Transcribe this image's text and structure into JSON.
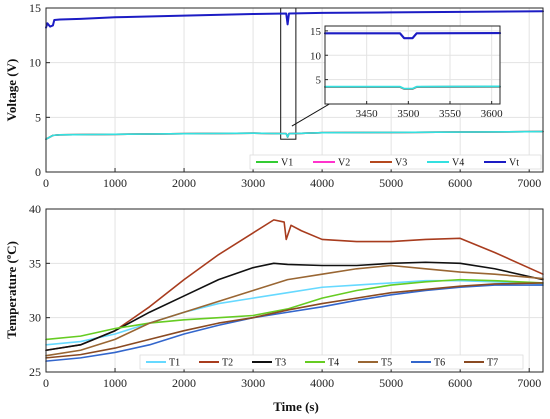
{
  "chart_data": [
    {
      "type": "line",
      "id": "voltage",
      "title": "",
      "xlabel": "",
      "ylabel": "Voltage (V)",
      "xlim": [
        0,
        7200
      ],
      "ylim": [
        0,
        15
      ],
      "xticks": [
        0,
        1000,
        2000,
        3000,
        4000,
        5000,
        6000,
        7000
      ],
      "yticks": [
        0,
        5,
        10,
        15
      ],
      "grid": true,
      "legend_position": "bottom-right",
      "series": [
        {
          "name": "V1",
          "color": "#33cc33",
          "x": [
            0,
            100,
            200,
            1000,
            2000,
            3000,
            3480,
            3500,
            3520,
            4000,
            5000,
            6000,
            7200
          ],
          "y": [
            3.0,
            3.35,
            3.4,
            3.45,
            3.5,
            3.55,
            3.5,
            3.2,
            3.5,
            3.6,
            3.62,
            3.65,
            3.7
          ]
        },
        {
          "name": "V2",
          "color": "#ff33cc",
          "x": [
            0,
            100,
            200,
            1000,
            2000,
            3000,
            3480,
            3500,
            3520,
            4000,
            5000,
            6000,
            7200
          ],
          "y": [
            3.0,
            3.35,
            3.4,
            3.45,
            3.5,
            3.55,
            3.5,
            3.2,
            3.5,
            3.6,
            3.62,
            3.65,
            3.7
          ]
        },
        {
          "name": "V3",
          "color": "#b5481e",
          "x": [
            0,
            100,
            200,
            1000,
            2000,
            3000,
            3480,
            3500,
            3520,
            4000,
            5000,
            6000,
            7200
          ],
          "y": [
            3.0,
            3.35,
            3.4,
            3.45,
            3.5,
            3.55,
            3.5,
            3.2,
            3.5,
            3.6,
            3.62,
            3.65,
            3.7
          ]
        },
        {
          "name": "V4",
          "color": "#33e0e0",
          "x": [
            0,
            100,
            200,
            1000,
            2000,
            3000,
            3480,
            3500,
            3520,
            4000,
            5000,
            6000,
            7200
          ],
          "y": [
            3.0,
            3.35,
            3.4,
            3.45,
            3.5,
            3.55,
            3.5,
            3.2,
            3.5,
            3.6,
            3.62,
            3.65,
            3.7
          ]
        },
        {
          "name": "Vt",
          "color": "#1c1cc4",
          "x": [
            0,
            20,
            60,
            100,
            120,
            200,
            500,
            1000,
            2000,
            3000,
            3480,
            3500,
            3520,
            4000,
            5000,
            6000,
            7200
          ],
          "y": [
            13.2,
            13.6,
            13.3,
            13.4,
            13.9,
            13.95,
            14.0,
            14.15,
            14.3,
            14.45,
            14.5,
            13.5,
            14.5,
            14.55,
            14.6,
            14.65,
            14.7
          ]
        }
      ],
      "annotation_box": {
        "x": [
          3400,
          3620
        ],
        "y": [
          3.0,
          15.0
        ]
      },
      "inset": {
        "xlim": [
          3400,
          3610
        ],
        "ylim": [
          0,
          16
        ],
        "xticks": [
          3450,
          3500,
          3550,
          3600
        ],
        "yticks": [
          5,
          10,
          15
        ],
        "series": [
          {
            "name": "V1",
            "color": "#33cc33",
            "x": [
              3400,
              3490,
              3495,
              3505,
              3510,
              3610
            ],
            "y": [
              3.5,
              3.5,
              3.1,
              3.1,
              3.5,
              3.55
            ]
          },
          {
            "name": "V2",
            "color": "#ff33cc",
            "x": [
              3400,
              3490,
              3495,
              3505,
              3510,
              3610
            ],
            "y": [
              3.5,
              3.5,
              3.1,
              3.1,
              3.5,
              3.55
            ]
          },
          {
            "name": "V3",
            "color": "#b5481e",
            "x": [
              3400,
              3490,
              3495,
              3505,
              3510,
              3610
            ],
            "y": [
              3.5,
              3.5,
              3.1,
              3.1,
              3.5,
              3.55
            ]
          },
          {
            "name": "V4",
            "color": "#33e0e0",
            "x": [
              3400,
              3490,
              3495,
              3505,
              3510,
              3610
            ],
            "y": [
              3.55,
              3.55,
              3.15,
              3.15,
              3.55,
              3.6
            ]
          },
          {
            "name": "Vt",
            "color": "#1c1cc4",
            "x": [
              3400,
              3490,
              3495,
              3505,
              3510,
              3610
            ],
            "y": [
              14.5,
              14.5,
              13.5,
              13.5,
              14.5,
              14.55
            ]
          }
        ]
      }
    },
    {
      "type": "line",
      "id": "temperature",
      "title": "",
      "xlabel": "Time (s)",
      "ylabel": "Temperature (ºC)",
      "xlim": [
        0,
        7200
      ],
      "ylim": [
        25,
        40
      ],
      "xticks": [
        0,
        1000,
        2000,
        3000,
        4000,
        5000,
        6000,
        7000
      ],
      "yticks": [
        25,
        30,
        35,
        40
      ],
      "grid": true,
      "legend_position": "bottom",
      "series": [
        {
          "name": "T1",
          "color": "#66d9ff",
          "x": [
            0,
            500,
            1000,
            1500,
            2000,
            2500,
            3000,
            3500,
            4000,
            4500,
            5000,
            5500,
            6000,
            6500,
            7200
          ],
          "y": [
            27.5,
            27.8,
            28.5,
            29.5,
            30.5,
            31.3,
            31.8,
            32.3,
            32.8,
            33.0,
            33.2,
            33.4,
            33.4,
            33.3,
            33.1
          ]
        },
        {
          "name": "T2",
          "color": "#a83c1e",
          "x": [
            0,
            500,
            1000,
            1500,
            2000,
            2500,
            3000,
            3300,
            3450,
            3480,
            3550,
            3700,
            4000,
            4500,
            5000,
            5500,
            6000,
            6500,
            7200
          ],
          "y": [
            27.0,
            27.5,
            28.8,
            31.0,
            33.5,
            35.8,
            37.8,
            39.0,
            38.8,
            37.2,
            38.5,
            38.0,
            37.2,
            37.0,
            37.0,
            37.2,
            37.3,
            36.0,
            34.0
          ]
        },
        {
          "name": "T3",
          "color": "#111111",
          "x": [
            0,
            500,
            1000,
            1500,
            2000,
            2500,
            3000,
            3300,
            3500,
            4000,
            4500,
            5000,
            5500,
            6000,
            6500,
            7200
          ],
          "y": [
            27.0,
            27.5,
            28.8,
            30.5,
            32.0,
            33.5,
            34.6,
            35.0,
            34.9,
            34.8,
            34.8,
            35.0,
            35.1,
            35.0,
            34.5,
            33.5
          ]
        },
        {
          "name": "T4",
          "color": "#66cc22",
          "x": [
            0,
            500,
            1000,
            1500,
            2000,
            2500,
            3000,
            3500,
            4000,
            4500,
            5000,
            5500,
            6000,
            6500,
            7200
          ],
          "y": [
            28.0,
            28.3,
            29.0,
            29.5,
            29.8,
            30.0,
            30.2,
            30.8,
            31.8,
            32.5,
            33.0,
            33.3,
            33.5,
            33.4,
            33.2
          ]
        },
        {
          "name": "T5",
          "color": "#996633",
          "x": [
            0,
            500,
            1000,
            1500,
            2000,
            2500,
            3000,
            3500,
            4000,
            4500,
            5000,
            5500,
            6000,
            6500,
            7200
          ],
          "y": [
            26.5,
            27.0,
            28.0,
            29.5,
            30.5,
            31.5,
            32.5,
            33.5,
            34.0,
            34.5,
            34.8,
            34.5,
            34.2,
            34.0,
            33.6
          ]
        },
        {
          "name": "T6",
          "color": "#3366cc",
          "x": [
            0,
            500,
            1000,
            1500,
            2000,
            2500,
            3000,
            3500,
            4000,
            4500,
            5000,
            5500,
            6000,
            6500,
            7200
          ],
          "y": [
            26.0,
            26.3,
            26.8,
            27.5,
            28.5,
            29.3,
            30.0,
            30.5,
            31.0,
            31.6,
            32.1,
            32.5,
            32.8,
            33.0,
            33.0
          ]
        },
        {
          "name": "T7",
          "color": "#8a4a22",
          "x": [
            0,
            500,
            1000,
            1500,
            2000,
            2500,
            3000,
            3500,
            4000,
            4500,
            5000,
            5500,
            6000,
            6500,
            7200
          ],
          "y": [
            26.3,
            26.6,
            27.2,
            28.0,
            28.8,
            29.5,
            30.0,
            30.7,
            31.3,
            31.8,
            32.3,
            32.6,
            32.9,
            33.1,
            33.2
          ]
        }
      ]
    }
  ]
}
